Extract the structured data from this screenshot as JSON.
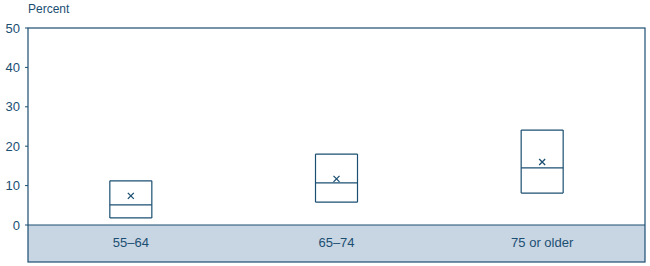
{
  "chart_data": {
    "type": "box",
    "y_label": "Percent",
    "categories": [
      "55–64",
      "65–74",
      "75 or older"
    ],
    "q1": [
      1.8,
      5.8,
      8.1
    ],
    "median": [
      5.1,
      10.7,
      14.5
    ],
    "q3": [
      11.2,
      18.0,
      24.1
    ],
    "mean": [
      7.4,
      11.7,
      16.0
    ],
    "color": "#1b4f72",
    "ylim": [
      0,
      50
    ],
    "yticks": [
      0,
      10,
      20,
      30,
      40,
      50
    ],
    "grid": false
  }
}
